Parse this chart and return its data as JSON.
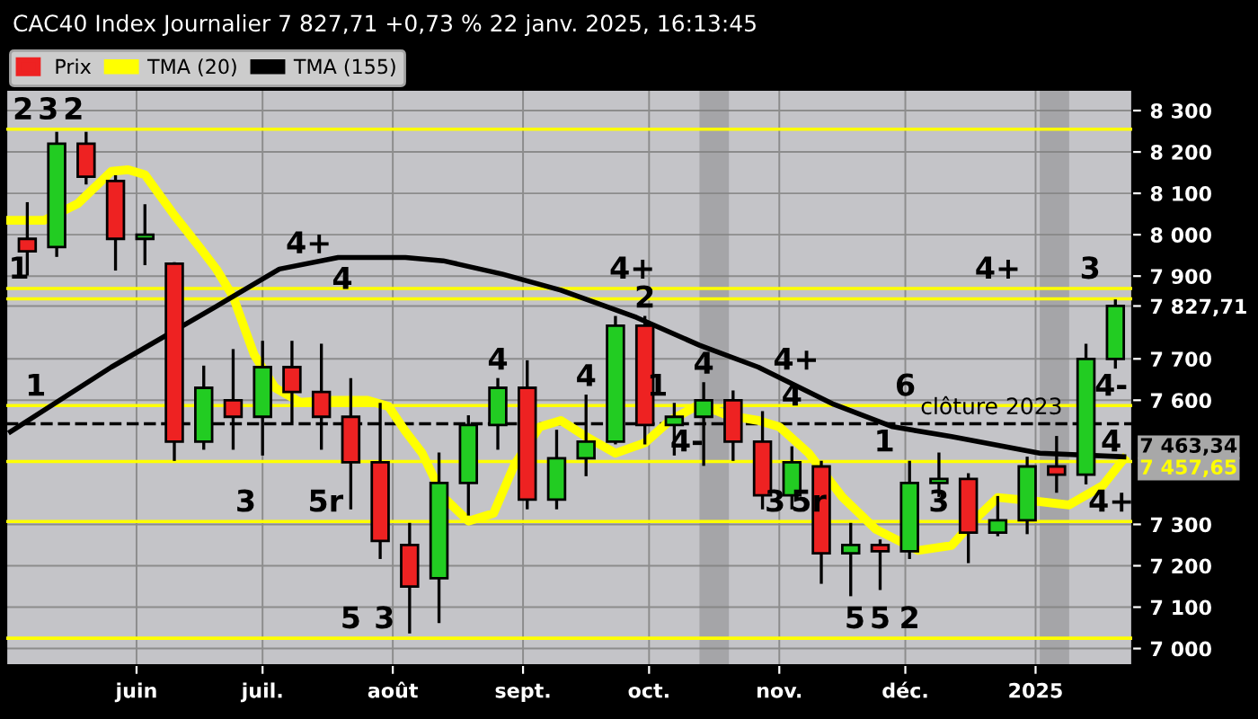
{
  "chart_data": {
    "type": "candlestick",
    "title": "CAC40 Index Journalier 7 827,71 +0,73 % 22 janv. 2025, 16:13:45",
    "series": [
      {
        "name": "Prix",
        "x": [
          "2024-05-06",
          "2024-05-13",
          "2024-05-20",
          "2024-05-27",
          "2024-06-03",
          "2024-06-10",
          "2024-06-17",
          "2024-06-24",
          "2024-07-01",
          "2024-07-08",
          "2024-07-15",
          "2024-07-22",
          "2024-07-29",
          "2024-08-05",
          "2024-08-12",
          "2024-08-19",
          "2024-08-26",
          "2024-09-02",
          "2024-09-09",
          "2024-09-16",
          "2024-09-23",
          "2024-09-30",
          "2024-10-07",
          "2024-10-14",
          "2024-10-21",
          "2024-10-28",
          "2024-11-04",
          "2024-11-11",
          "2024-11-18",
          "2024-11-25",
          "2024-12-02",
          "2024-12-09",
          "2024-12-16",
          "2024-12-23",
          "2024-12-30",
          "2025-01-06",
          "2025-01-13",
          "2025-01-20"
        ],
        "ohlc": [
          [
            7990,
            8075,
            7905,
            7960
          ],
          [
            7970,
            8245,
            7950,
            8220
          ],
          [
            8220,
            8245,
            8125,
            8140
          ],
          [
            8130,
            8140,
            7917,
            7990
          ],
          [
            7990,
            8070,
            7930,
            8000
          ],
          [
            7930,
            7930,
            7457,
            7500
          ],
          [
            7500,
            7680,
            7484,
            7630
          ],
          [
            7600,
            7720,
            7484,
            7560
          ],
          [
            7560,
            7740,
            7470,
            7680
          ],
          [
            7680,
            7740,
            7550,
            7620
          ],
          [
            7620,
            7733,
            7484,
            7560
          ],
          [
            7560,
            7650,
            7340,
            7450
          ],
          [
            7450,
            7590,
            7220,
            7260
          ],
          [
            7250,
            7300,
            7040,
            7150
          ],
          [
            7170,
            7470,
            7065,
            7400
          ],
          [
            7400,
            7560,
            7325,
            7540
          ],
          [
            7540,
            7650,
            7484,
            7630
          ],
          [
            7630,
            7693,
            7340,
            7360
          ],
          [
            7360,
            7525,
            7340,
            7460
          ],
          [
            7460,
            7610,
            7420,
            7500
          ],
          [
            7500,
            7800,
            7497,
            7780
          ],
          [
            7780,
            7800,
            7497,
            7540
          ],
          [
            7540,
            7590,
            7470,
            7560
          ],
          [
            7560,
            7640,
            7445,
            7600
          ],
          [
            7600,
            7620,
            7457,
            7500
          ],
          [
            7500,
            7570,
            7340,
            7370
          ],
          [
            7370,
            7485,
            7340,
            7450
          ],
          [
            7440,
            7450,
            7160,
            7230
          ],
          [
            7230,
            7300,
            7130,
            7250
          ],
          [
            7250,
            7260,
            7145,
            7235
          ],
          [
            7235,
            7450,
            7220,
            7400
          ],
          [
            7400,
            7470,
            7370,
            7410
          ],
          [
            7410,
            7420,
            7210,
            7280
          ],
          [
            7280,
            7365,
            7275,
            7310
          ],
          [
            7310,
            7460,
            7280,
            7440
          ],
          [
            7440,
            7510,
            7380,
            7420
          ],
          [
            7420,
            7733,
            7400,
            7700
          ],
          [
            7700,
            7840,
            7680,
            7827.71
          ]
        ],
        "colors": [
          "#ee2222",
          "#22cc22",
          "#ee2222",
          "#ee2222",
          "#22cc22",
          "#ee2222",
          "#22cc22",
          "#ee2222",
          "#22cc22",
          "#ee2222",
          "#ee2222",
          "#ee2222",
          "#ee2222",
          "#ee2222",
          "#22cc22",
          "#22cc22",
          "#22cc22",
          "#ee2222",
          "#22cc22",
          "#22cc22",
          "#22cc22",
          "#ee2222",
          "#22cc22",
          "#22cc22",
          "#ee2222",
          "#ee2222",
          "#22cc22",
          "#ee2222",
          "#22cc22",
          "#ee2222",
          "#22cc22",
          "#22cc22",
          "#ee2222",
          "#22cc22",
          "#22cc22",
          "#ee2222",
          "#22cc22",
          "#22cc22"
        ]
      },
      {
        "name": "TMA (20)",
        "type": "line",
        "color": "#ffff00",
        "x": [
          "2024-05-02",
          "2024-05-10",
          "2024-05-18",
          "2024-05-26",
          "2024-05-30",
          "2024-06-03",
          "2024-06-10",
          "2024-06-16",
          "2024-06-20",
          "2024-06-24",
          "2024-06-29",
          "2024-07-04",
          "2024-07-10",
          "2024-07-18",
          "2024-07-26",
          "2024-07-31",
          "2024-08-04",
          "2024-08-08",
          "2024-08-13",
          "2024-08-19",
          "2024-08-25",
          "2024-08-30",
          "2024-09-05",
          "2024-09-10",
          "2024-09-16",
          "2024-09-23",
          "2024-09-30",
          "2024-10-06",
          "2024-10-13",
          "2024-10-20",
          "2024-10-27",
          "2024-11-01",
          "2024-11-08",
          "2024-11-16",
          "2024-11-24",
          "2024-12-04",
          "2024-12-12",
          "2024-12-18",
          "2024-12-23",
          "2025-01-02",
          "2025-01-09",
          "2025-01-17",
          "2025-01-22"
        ],
        "values": [
          8035,
          8035,
          8075,
          8153,
          8157,
          8145,
          8047,
          7970,
          7917,
          7850,
          7710,
          7630,
          7595,
          7600,
          7600,
          7585,
          7525,
          7472,
          7366,
          7308,
          7327,
          7445,
          7536,
          7551,
          7512,
          7472,
          7497,
          7551,
          7590,
          7563,
          7551,
          7536,
          7472,
          7366,
          7288,
          7237,
          7249,
          7316,
          7365,
          7355,
          7347,
          7394,
          7457.65
        ],
        "value_labels": [
          null,
          null,
          null,
          null,
          null,
          null,
          null,
          null,
          null,
          null,
          null,
          null,
          null,
          null,
          null,
          null,
          null,
          null,
          null,
          null,
          null,
          null,
          null,
          null,
          null,
          null,
          null,
          null,
          null,
          null,
          null,
          null,
          null,
          null,
          null,
          null,
          null,
          null,
          null,
          null,
          null,
          null,
          "7 457,65"
        ]
      },
      {
        "name": "TMA (155)",
        "type": "line",
        "color": "#000000",
        "x": [
          "2024-05-02",
          "2024-05-26",
          "2024-06-20",
          "2024-07-05",
          "2024-07-19",
          "2024-08-04",
          "2024-08-13",
          "2024-08-27",
          "2024-09-10",
          "2024-09-28",
          "2024-10-13",
          "2024-10-27",
          "2024-11-14",
          "2024-11-28",
          "2024-12-12",
          "2025-01-02",
          "2025-01-22"
        ],
        "values": [
          7524,
          7680,
          7827,
          7917,
          7945,
          7945,
          7937,
          7905,
          7866,
          7800,
          7733,
          7680,
          7590,
          7536,
          7512,
          7472,
          7463.34
        ],
        "value_labels": [
          null,
          null,
          null,
          null,
          null,
          null,
          null,
          null,
          null,
          null,
          null,
          null,
          null,
          null,
          null,
          null,
          "7 463,34"
        ]
      }
    ],
    "xlim": [
      "2024-05-01",
      "2025-01-24"
    ],
    "xticks": [
      {
        "value": "2024-06-01",
        "label": "juin"
      },
      {
        "value": "2024-07-01",
        "label": "juil."
      },
      {
        "value": "2024-08-01",
        "label": "août"
      },
      {
        "value": "2024-09-01",
        "label": "sept."
      },
      {
        "value": "2024-10-01",
        "label": "oct."
      },
      {
        "value": "2024-11-01",
        "label": "nov."
      },
      {
        "value": "2024-12-01",
        "label": "déc."
      },
      {
        "value": "2025-01-01",
        "label": "2025"
      }
    ],
    "ylim": [
      6960,
      8350
    ],
    "yticks": [
      {
        "value": 7000,
        "label": "7 000"
      },
      {
        "value": 7100,
        "label": "7 100"
      },
      {
        "value": 7200,
        "label": "7 200"
      },
      {
        "value": 7300,
        "label": "7 300"
      },
      {
        "value": 7600,
        "label": "7 600"
      },
      {
        "value": 7700,
        "label": "7 700"
      },
      {
        "value": 7827.71,
        "label": "7 827,71"
      },
      {
        "value": 7900,
        "label": "7 900"
      },
      {
        "value": 8000,
        "label": "8 000"
      },
      {
        "value": 8100,
        "label": "8 100"
      },
      {
        "value": 8200,
        "label": "8 200"
      },
      {
        "value": 8300,
        "label": "8 300"
      }
    ],
    "grid": true,
    "legend": "top left",
    "ref_lines": [
      {
        "axis": "y",
        "value": 8255,
        "color": "#ffff00"
      },
      {
        "axis": "y",
        "value": 7870,
        "color": "#ffff00"
      },
      {
        "axis": "y",
        "value": 7845,
        "color": "#ffff00"
      },
      {
        "axis": "y",
        "value": 7587,
        "color": "#ffff00"
      },
      {
        "axis": "y",
        "value": 7452,
        "color": "#ffff00"
      },
      {
        "axis": "y",
        "value": 7307,
        "color": "#ffff00"
      },
      {
        "axis": "y",
        "value": 7025,
        "color": "#ffff00"
      },
      {
        "axis": "y",
        "value": 7543,
        "label": "clôture 2023",
        "color": "#000000",
        "line_style": "dashed"
      }
    ],
    "bands": [
      {
        "axis": "x",
        "from": "2024-10-13",
        "to": "2024-10-20",
        "color": "#808080"
      },
      {
        "axis": "x",
        "from": "2025-01-02",
        "to": "2025-01-09",
        "color": "#808080"
      }
    ],
    "annotations": [
      {
        "text": "2",
        "x": "2024-05-05",
        "y": 8255
      },
      {
        "text": "3",
        "x": "2024-05-11",
        "y": 8255
      },
      {
        "text": "2",
        "x": "2024-05-17",
        "y": 8255
      },
      {
        "text": "1",
        "x": "2024-05-04",
        "y": 7870
      },
      {
        "text": "1",
        "x": "2024-05-08",
        "y": 7587
      },
      {
        "text": "4+",
        "x": "2024-07-12",
        "y": 7931
      },
      {
        "text": "4",
        "x": "2024-07-20",
        "y": 7845
      },
      {
        "text": "3",
        "x": "2024-06-27",
        "y": 7307
      },
      {
        "text": "5r",
        "x": "2024-07-16",
        "y": 7307
      },
      {
        "text": "5",
        "x": "2024-07-22",
        "y": 7025
      },
      {
        "text": "3",
        "x": "2024-07-30",
        "y": 7025
      },
      {
        "text": "4",
        "x": "2024-08-26",
        "y": 7650
      },
      {
        "text": "4",
        "x": "2024-09-16",
        "y": 7610
      },
      {
        "text": "4+",
        "x": "2024-09-27",
        "y": 7870
      },
      {
        "text": "2",
        "x": "2024-09-30",
        "y": 7800
      },
      {
        "text": "1",
        "x": "2024-10-03",
        "y": 7587
      },
      {
        "text": "4-",
        "x": "2024-10-10",
        "y": 7452
      },
      {
        "text": "4",
        "x": "2024-10-14",
        "y": 7640
      },
      {
        "text": "4+",
        "x": "2024-11-05",
        "y": 7650
      },
      {
        "text": "4",
        "x": "2024-11-04",
        "y": 7563
      },
      {
        "text": "3",
        "x": "2024-10-31",
        "y": 7307
      },
      {
        "text": "5r",
        "x": "2024-11-08",
        "y": 7307
      },
      {
        "text": "1",
        "x": "2024-11-26",
        "y": 7452
      },
      {
        "text": "6",
        "x": "2024-12-01",
        "y": 7587
      },
      {
        "text": "3",
        "x": "2024-12-09",
        "y": 7307
      },
      {
        "text": "5",
        "x": "2024-11-19",
        "y": 7025
      },
      {
        "text": "5",
        "x": "2024-11-25",
        "y": 7025
      },
      {
        "text": "2",
        "x": "2024-12-02",
        "y": 7025
      },
      {
        "text": "4+",
        "x": "2024-12-23",
        "y": 7870
      },
      {
        "text": "3",
        "x": "2025-01-14",
        "y": 7870
      },
      {
        "text": "4-",
        "x": "2025-01-19",
        "y": 7587
      },
      {
        "text": "4",
        "x": "2025-01-19",
        "y": 7452
      },
      {
        "text": "4+",
        "x": "2025-01-19",
        "y": 7307
      }
    ]
  }
}
